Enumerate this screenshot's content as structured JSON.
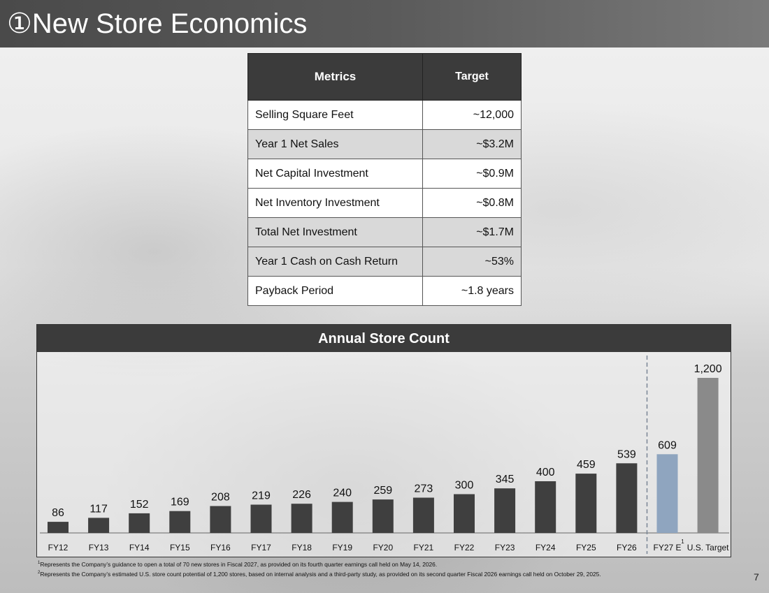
{
  "title": {
    "marker": "①",
    "text": "New Store Economics"
  },
  "metrics_table": {
    "headers": {
      "metric": "Metrics",
      "target": "Target"
    },
    "rows": [
      {
        "metric": "Selling Square Feet",
        "target": "~12,000"
      },
      {
        "metric": "Year 1 Net Sales",
        "target": "~$3.2M"
      },
      {
        "metric": "Net Capital Investment",
        "target": "~$0.9M"
      },
      {
        "metric": "Net Inventory Investment",
        "target": "~$0.8M"
      },
      {
        "metric": "Total Net Investment",
        "target": "~$1.7M"
      },
      {
        "metric": "Year 1 Cash on Cash Return",
        "target": "~53%"
      },
      {
        "metric": "Payback Period",
        "target": "~1.8 years"
      }
    ]
  },
  "chart_data": {
    "type": "bar",
    "title": "Annual Store Count",
    "categories": [
      "FY12",
      "FY13",
      "FY14",
      "FY15",
      "FY16",
      "FY17",
      "FY18",
      "FY19",
      "FY20",
      "FY21",
      "FY22",
      "FY23",
      "FY24",
      "FY25",
      "FY26",
      "FY27 E",
      "U.S. Target"
    ],
    "values": [
      86,
      117,
      152,
      169,
      208,
      219,
      226,
      240,
      259,
      273,
      300,
      345,
      400,
      459,
      539,
      609,
      1200
    ],
    "value_labels": [
      "86",
      "117",
      "152",
      "169",
      "208",
      "219",
      "226",
      "240",
      "259",
      "273",
      "300",
      "345",
      "400",
      "459",
      "539",
      "609",
      "1,200"
    ],
    "category_footnote_refs": [
      "",
      "",
      "",
      "",
      "",
      "",
      "",
      "",
      "",
      "",
      "",
      "",
      "",
      "",
      "",
      "1",
      "2"
    ],
    "bar_colors": [
      "#3f3f3f",
      "#3f3f3f",
      "#3f3f3f",
      "#3f3f3f",
      "#3f3f3f",
      "#3f3f3f",
      "#3f3f3f",
      "#3f3f3f",
      "#3f3f3f",
      "#3f3f3f",
      "#3f3f3f",
      "#3f3f3f",
      "#3f3f3f",
      "#3f3f3f",
      "#3f3f3f",
      "#8fa5bf",
      "#8a8a8a"
    ],
    "divider": "dashed line between FY26 and FY27 E",
    "ylim": [
      0,
      1200
    ],
    "grid": false,
    "legend": "none"
  },
  "footnotes": [
    {
      "ref": "1",
      "text": "Represents the Company’s guidance to open a total of 70 new stores in Fiscal 2027, as provided on its fourth quarter earnings call held on May 14, 2026."
    },
    {
      "ref": "2",
      "text": "Represents the Company’s estimated U.S. store count potential of 1,200 stores, based on internal analysis and a third-party study, as provided on its second quarter Fiscal 2026 earnings call held on October 29, 2025."
    }
  ],
  "page_number": "7"
}
